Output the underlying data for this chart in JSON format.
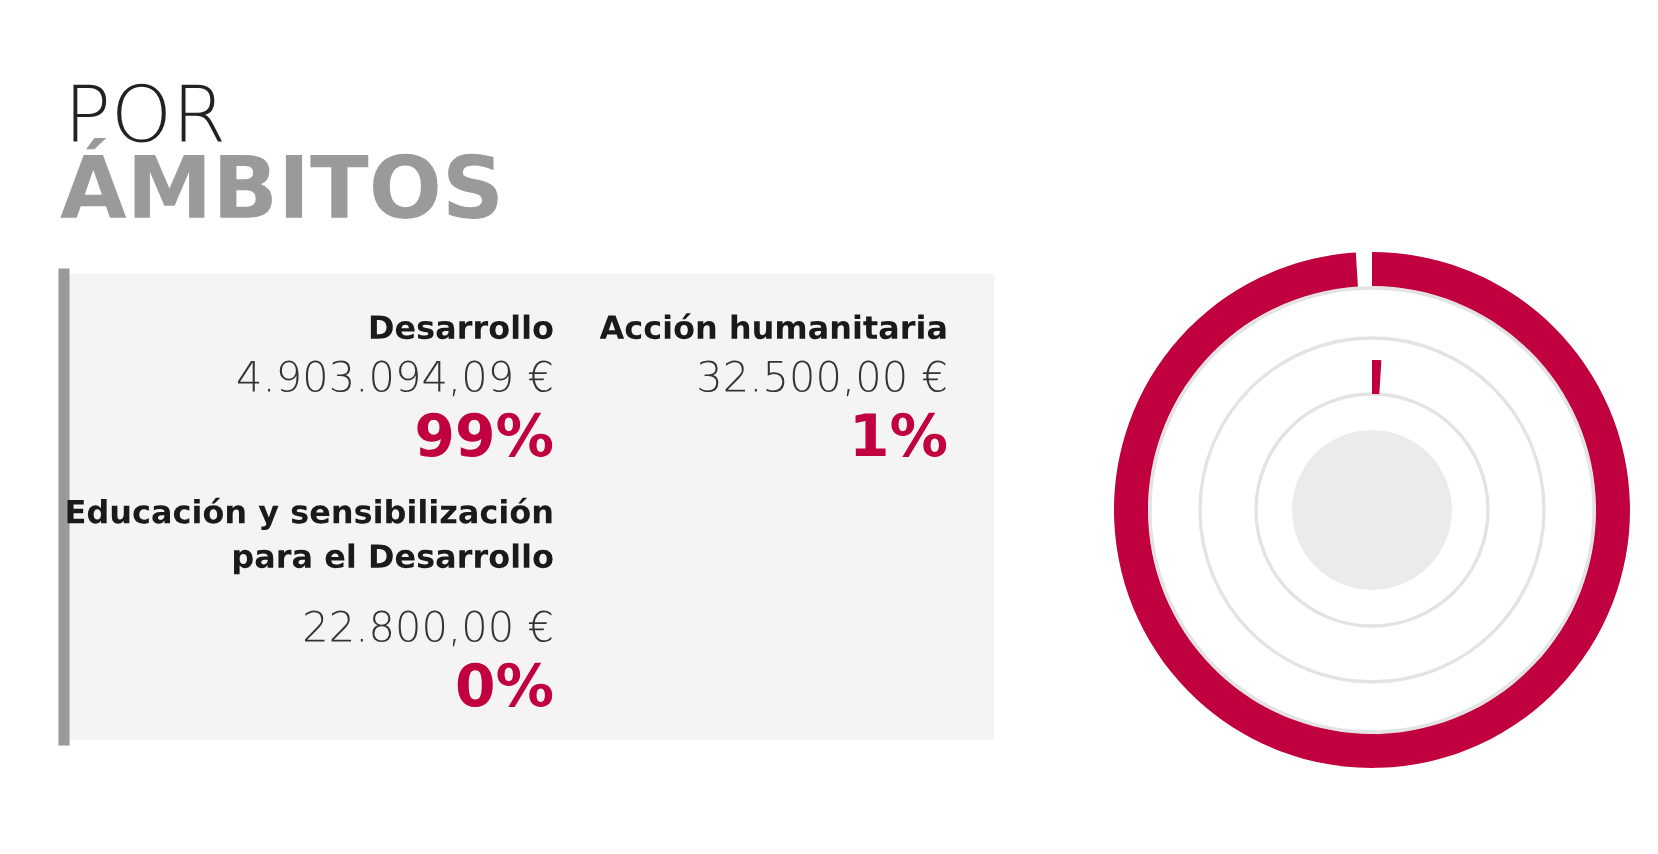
{
  "chart_data": {
    "type": "other",
    "title": "POR",
    "subtitle": "ÁMBITOS",
    "categories": [
      "Desarrollo",
      "Acción humanitaria",
      "Educación y sensibilización\npara el Desarrollo"
    ],
    "series": [
      {
        "values": [
          4903094.09,
          32500.0,
          22800.0
        ],
        "value_labels": [
          "4.903.094,09 €",
          "32.500,00 €",
          "22.800,00 €"
        ]
      },
      {
        "values": [
          99,
          1,
          0
        ],
        "value_labels": [
          "99%",
          "1%",
          "0%"
        ]
      }
    ]
  }
}
